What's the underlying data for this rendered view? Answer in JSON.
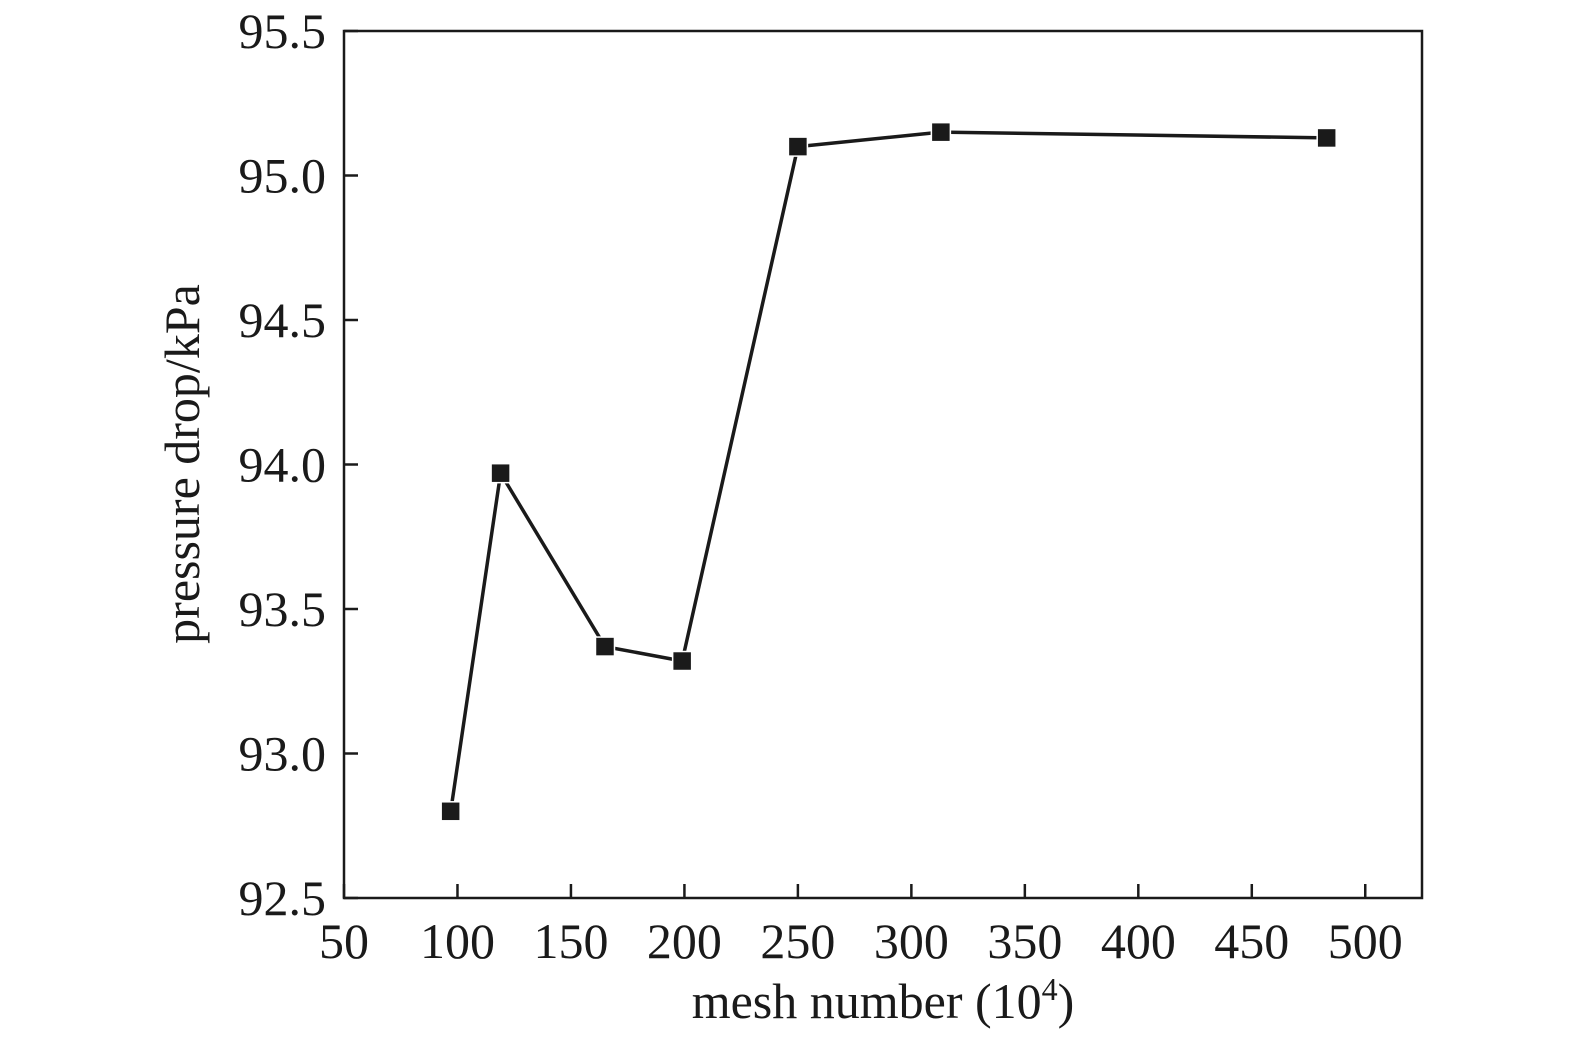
{
  "chart_data": {
    "type": "line",
    "title": "",
    "xlabel": "mesh number (10",
    "xlabel_sup": "4",
    "xlabel_close": ")",
    "ylabel": "pressure drop/kPa",
    "xlim": [
      50,
      525
    ],
    "ylim": [
      92.5,
      95.5
    ],
    "xticks": [
      50,
      100,
      150,
      200,
      250,
      300,
      350,
      400,
      450,
      500
    ],
    "yticks": [
      92.5,
      93.0,
      93.5,
      94.0,
      94.5,
      95.0,
      95.5
    ],
    "ytick_decimals": 1,
    "grid": false,
    "series": [
      {
        "x": [
          97,
          119,
          165,
          199,
          250,
          313,
          483
        ],
        "y": [
          92.8,
          93.97,
          93.37,
          93.32,
          95.1,
          95.15,
          95.13
        ],
        "marker": "square",
        "color": "#1a1a1a"
      }
    ]
  }
}
